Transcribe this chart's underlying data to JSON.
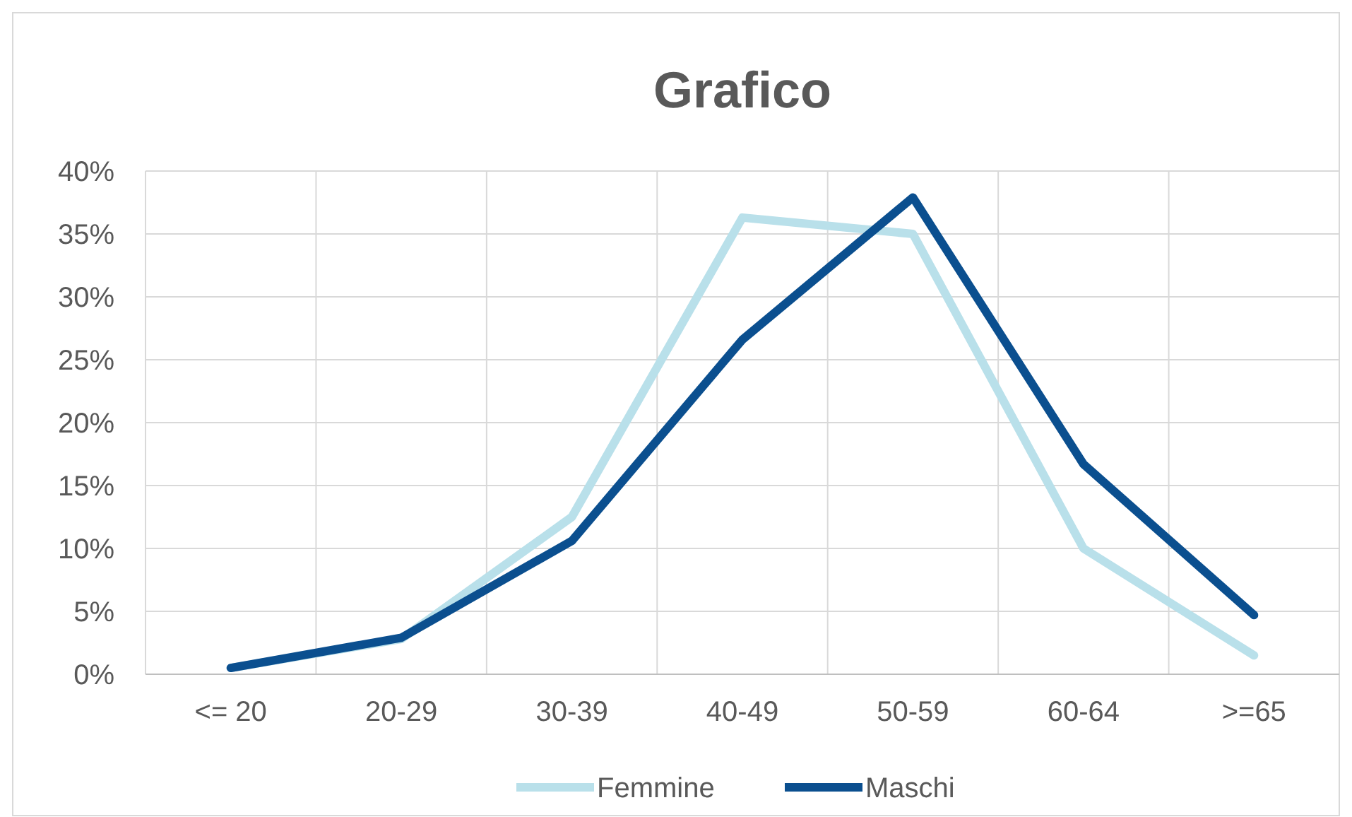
{
  "chart_data": {
    "type": "line",
    "title": "Grafico",
    "categories": [
      "<= 20",
      "20-29",
      "30-39",
      "40-49",
      "50-59",
      "60-64",
      ">=65"
    ],
    "series": [
      {
        "name": "Femmine",
        "color": "#b9e0ea",
        "values": [
          0.5,
          2.8,
          12.5,
          36.3,
          35,
          10,
          1.5
        ]
      },
      {
        "name": "Maschi",
        "color": "#0b4f8f",
        "values": [
          0.5,
          2.9,
          10.6,
          26.6,
          37.9,
          16.7,
          4.7
        ]
      }
    ],
    "ylim": [
      0,
      40
    ],
    "yticks": [
      {
        "value": 0,
        "label": "0%"
      },
      {
        "value": 5,
        "label": "5%"
      },
      {
        "value": 10,
        "label": "10%"
      },
      {
        "value": 15,
        "label": "15%"
      },
      {
        "value": 20,
        "label": "20%"
      },
      {
        "value": 25,
        "label": "25%"
      },
      {
        "value": 30,
        "label": "30%"
      },
      {
        "value": 35,
        "label": "35%"
      },
      {
        "value": 40,
        "label": "40%"
      }
    ],
    "grid": true,
    "legend": "bottom",
    "marker": "none",
    "line_style": "solid"
  }
}
